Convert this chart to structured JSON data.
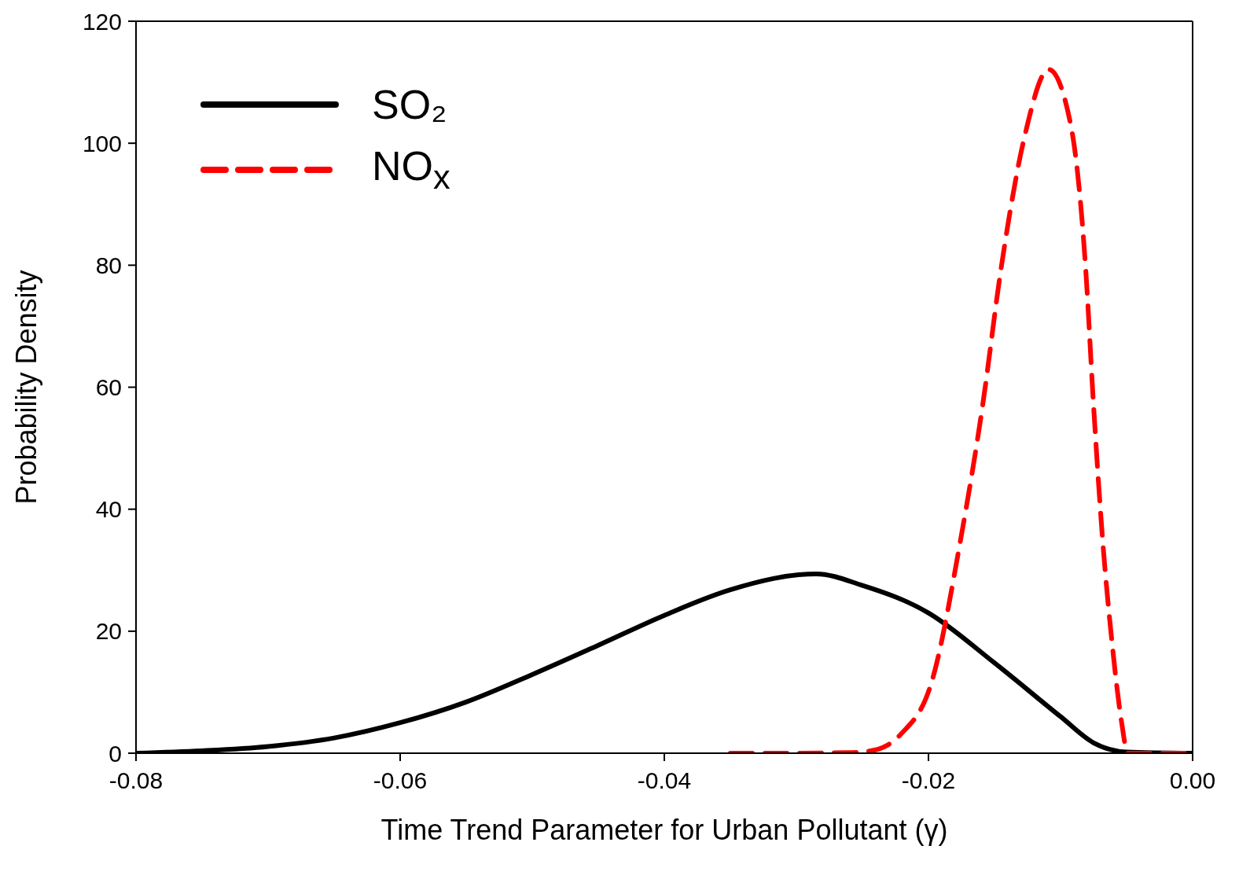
{
  "chart_data": {
    "type": "line",
    "xlabel": "Time Trend Parameter for Urban Pollutant (γ)",
    "ylabel": "Probability Density",
    "xlim": [
      -0.08,
      0
    ],
    "xticks": [
      -0.08,
      -0.06,
      -0.04,
      -0.02,
      {
        "value": 0,
        "label": "0.00"
      }
    ],
    "ylim": [
      0,
      120
    ],
    "yticks": [
      0,
      20,
      40,
      60,
      80,
      100,
      120
    ],
    "legend": "top left",
    "marker": "none",
    "series": [
      {
        "name": "SO₂",
        "color": "#000000",
        "line_style": "solid",
        "x": [
          -0.08,
          -0.075,
          -0.07,
          -0.065,
          -0.06,
          -0.055,
          -0.05,
          -0.045,
          -0.04,
          -0.035,
          -0.0285,
          -0.025,
          -0.02,
          -0.015,
          -0.01,
          -0.0075,
          -0.005,
          0
        ],
        "values": [
          0,
          0.4,
          1.1,
          2.5,
          5,
          8.4,
          12.9,
          17.7,
          22.6,
          26.8,
          29.4,
          27.5,
          23,
          14.8,
          6,
          1.7,
          0.2,
          0
        ]
      },
      {
        "name": "NO$_{x}$",
        "color": "#ff0000",
        "line_style": "dashed",
        "x": [
          -0.035,
          -0.03,
          -0.026,
          -0.0246,
          -0.0232,
          -0.0221,
          -0.0197,
          -0.0176,
          -0.0159,
          -0.0145,
          -0.0127,
          -0.0109,
          -0.0092,
          -0.0081,
          -0.0075,
          -0.0068,
          -0.0061,
          -0.0054,
          -0.0049,
          -0.004,
          0
        ],
        "values": [
          0,
          0,
          0.1,
          0.3,
          1.2,
          3.1,
          12.1,
          34.6,
          57,
          79.5,
          101.3,
          112.1,
          102.7,
          79.5,
          57,
          34.6,
          18.1,
          5.4,
          0,
          0,
          0
        ]
      }
    ]
  }
}
